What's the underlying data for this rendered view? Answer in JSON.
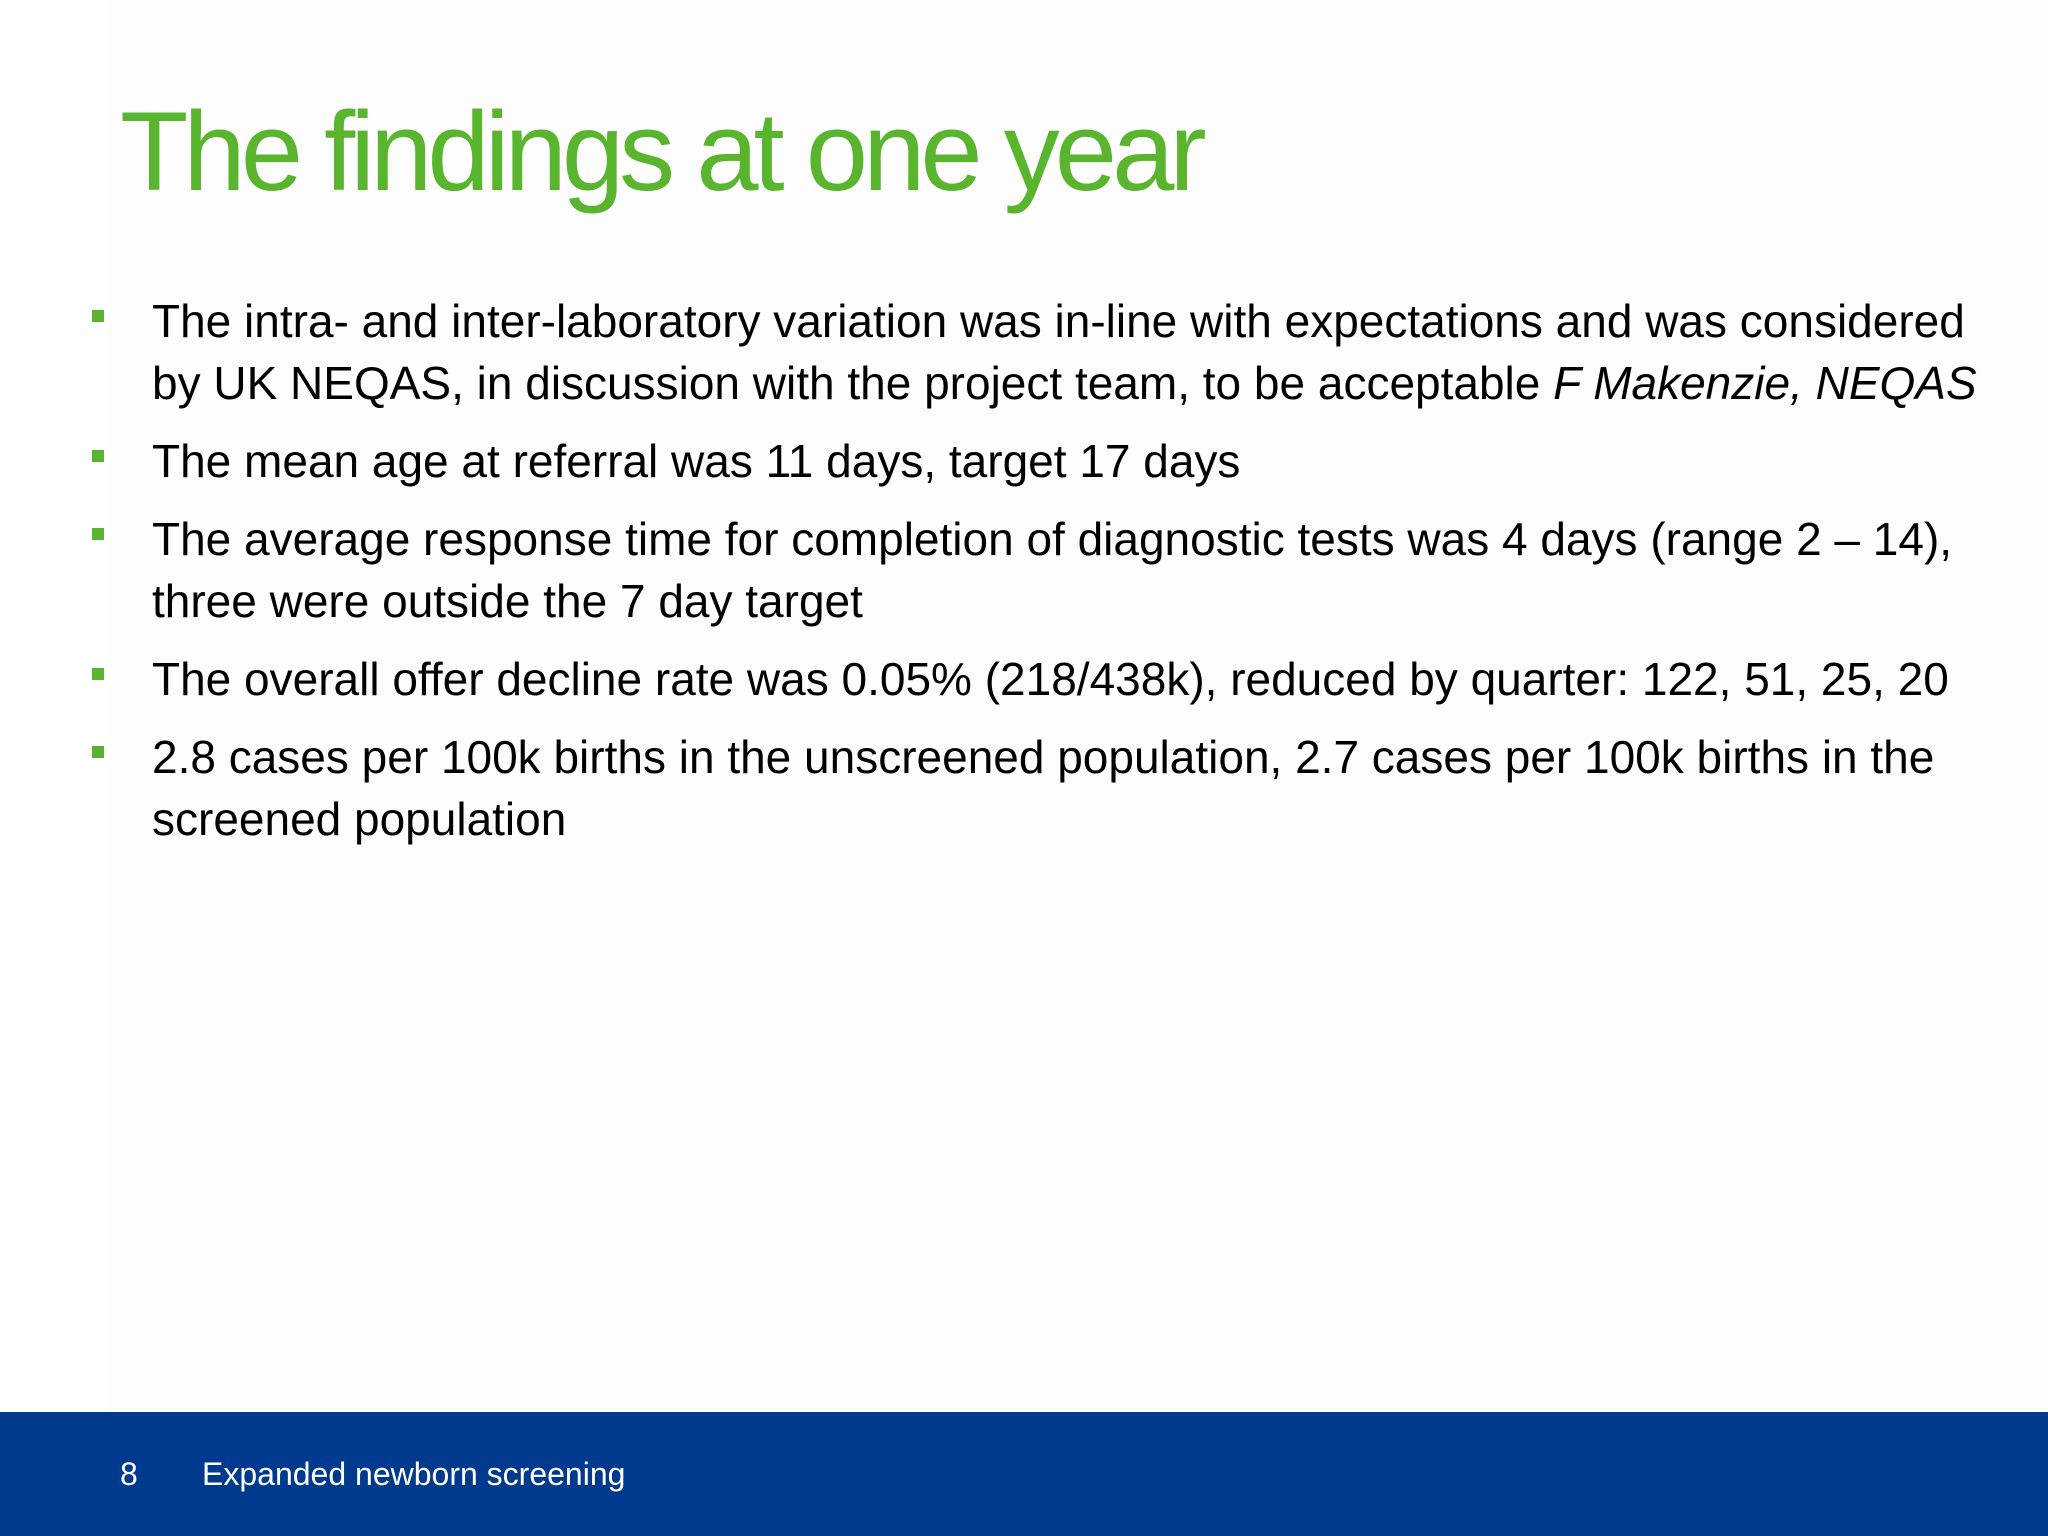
{
  "colors": {
    "title": "#5ab52e",
    "bullet_marker": "#5ab52e",
    "footer_background": "#003a8f",
    "footer_text": "#ffffff"
  },
  "slide": {
    "title": "The findings at one year",
    "bullets": [
      {
        "icon": "green-square-bullet",
        "text": "The intra- and inter-laboratory variation was in-line with expectations and was considered by UK NEQAS, in discussion with the project team, to be acceptable ",
        "attribution": "F Makenzie, NEQAS"
      },
      {
        "icon": "green-square-bullet",
        "text": "The mean age at referral was 11 days, target 17 days"
      },
      {
        "icon": "green-square-bullet",
        "text": "The average response time for completion of diagnostic tests was 4 days (range 2 – 14), three were outside the 7 day target"
      },
      {
        "icon": "green-square-bullet",
        "text": "The overall offer decline rate was 0.05% (218/438k), reduced by quarter: 122, 51, 25, 20"
      },
      {
        "icon": "green-square-bullet",
        "text": "2.8 cases per 100k births in the unscreened population,  2.7 cases per 100k births in the screened population"
      }
    ]
  },
  "footer": {
    "page_number": "8",
    "label": "Expanded newborn screening"
  }
}
